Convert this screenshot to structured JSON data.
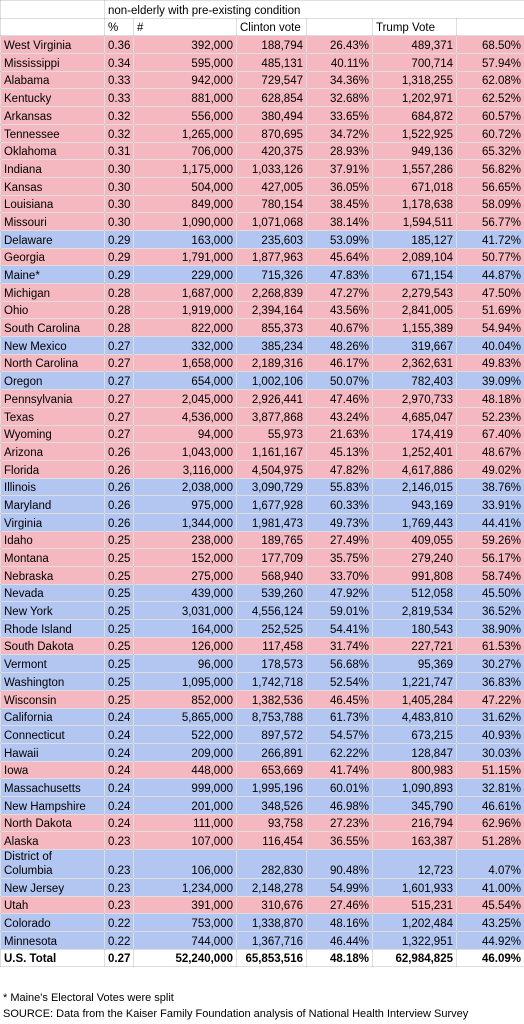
{
  "table": {
    "header_title": "non-elderly with pre-existing condition",
    "columns": [
      "%",
      "#",
      "Clinton vote",
      "Trump Vote"
    ],
    "rows": [
      [
        "West Virginia",
        "0.36",
        "392,000",
        "188,794",
        "26.43%",
        "489,371",
        "68.50%"
      ],
      [
        "Mississippi",
        "0.34",
        "595,000",
        "485,131",
        "40.11%",
        "700,714",
        "57.94%"
      ],
      [
        "Alabama",
        "0.33",
        "942,000",
        "729,547",
        "34.36%",
        "1,318,255",
        "62.08%"
      ],
      [
        "Kentucky",
        "0.33",
        "881,000",
        "628,854",
        "32.68%",
        "1,202,971",
        "62.52%"
      ],
      [
        "Arkansas",
        "0.32",
        "556,000",
        "380,494",
        "33.65%",
        "684,872",
        "60.57%"
      ],
      [
        "Tennessee",
        "0.32",
        "1,265,000",
        "870,695",
        "34.72%",
        "1,522,925",
        "60.72%"
      ],
      [
        "Oklahoma",
        "0.31",
        "706,000",
        "420,375",
        "28.93%",
        "949,136",
        "65.32%"
      ],
      [
        "Indiana",
        "0.30",
        "1,175,000",
        "1,033,126",
        "37.91%",
        "1,557,286",
        "56.82%"
      ],
      [
        "Kansas",
        "0.30",
        "504,000",
        "427,005",
        "36.05%",
        "671,018",
        "56.65%"
      ],
      [
        "Louisiana",
        "0.30",
        "849,000",
        "780,154",
        "38.45%",
        "1,178,638",
        "58.09%"
      ],
      [
        "Missouri",
        "0.30",
        "1,090,000",
        "1,071,068",
        "38.14%",
        "1,594,511",
        "56.77%"
      ],
      [
        "Delaware",
        "0.29",
        "163,000",
        "235,603",
        "53.09%",
        "185,127",
        "41.72%"
      ],
      [
        "Georgia",
        "0.29",
        "1,791,000",
        "1,877,963",
        "45.64%",
        "2,089,104",
        "50.77%"
      ],
      [
        "Maine*",
        "0.29",
        "229,000",
        "715,326",
        "47.83%",
        "671,154",
        "44.87%"
      ],
      [
        "Michigan",
        "0.28",
        "1,687,000",
        "2,268,839",
        "47.27%",
        "2,279,543",
        "47.50%"
      ],
      [
        "Ohio",
        "0.28",
        "1,919,000",
        "2,394,164",
        "43.56%",
        "2,841,005",
        "51.69%"
      ],
      [
        "South Carolina",
        "0.28",
        "822,000",
        "855,373",
        "40.67%",
        "1,155,389",
        "54.94%"
      ],
      [
        "New Mexico",
        "0.27",
        "332,000",
        "385,234",
        "48.26%",
        "319,667",
        "40.04%"
      ],
      [
        "North Carolina",
        "0.27",
        "1,658,000",
        "2,189,316",
        "46.17%",
        "2,362,631",
        "49.83%"
      ],
      [
        "Oregon",
        "0.27",
        "654,000",
        "1,002,106",
        "50.07%",
        "782,403",
        "39.09%"
      ],
      [
        "Pennsylvania",
        "0.27",
        "2,045,000",
        "2,926,441",
        "47.46%",
        "2,970,733",
        "48.18%"
      ],
      [
        "Texas",
        "0.27",
        "4,536,000",
        "3,877,868",
        "43.24%",
        "4,685,047",
        "52.23%"
      ],
      [
        "Wyoming",
        "0.27",
        "94,000",
        "55,973",
        "21.63%",
        "174,419",
        "67.40%"
      ],
      [
        "Arizona",
        "0.26",
        "1,043,000",
        "1,161,167",
        "45.13%",
        "1,252,401",
        "48.67%"
      ],
      [
        "Florida",
        "0.26",
        "3,116,000",
        "4,504,975",
        "47.82%",
        "4,617,886",
        "49.02%"
      ],
      [
        "Illinois",
        "0.26",
        "2,038,000",
        "3,090,729",
        "55.83%",
        "2,146,015",
        "38.76%"
      ],
      [
        "Maryland",
        "0.26",
        "975,000",
        "1,677,928",
        "60.33%",
        "943,169",
        "33.91%"
      ],
      [
        "Virginia",
        "0.26",
        "1,344,000",
        "1,981,473",
        "49.73%",
        "1,769,443",
        "44.41%"
      ],
      [
        "Idaho",
        "0.25",
        "238,000",
        "189,765",
        "27.49%",
        "409,055",
        "59.26%"
      ],
      [
        "Montana",
        "0.25",
        "152,000",
        "177,709",
        "35.75%",
        "279,240",
        "56.17%"
      ],
      [
        "Nebraska",
        "0.25",
        "275,000",
        "568,940",
        "33.70%",
        "991,808",
        "58.74%"
      ],
      [
        "Nevada",
        "0.25",
        "439,000",
        "539,260",
        "47.92%",
        "512,058",
        "45.50%"
      ],
      [
        "New York",
        "0.25",
        "3,031,000",
        "4,556,124",
        "59.01%",
        "2,819,534",
        "36.52%"
      ],
      [
        "Rhode Island",
        "0.25",
        "164,000",
        "252,525",
        "54.41%",
        "180,543",
        "38.90%"
      ],
      [
        "South Dakota",
        "0.25",
        "126,000",
        "117,458",
        "31.74%",
        "227,721",
        "61.53%"
      ],
      [
        "Vermont",
        "0.25",
        "96,000",
        "178,573",
        "56.68%",
        "95,369",
        "30.27%"
      ],
      [
        "Washington",
        "0.25",
        "1,095,000",
        "1,742,718",
        "52.54%",
        "1,221,747",
        "36.83%"
      ],
      [
        "Wisconsin",
        "0.25",
        "852,000",
        "1,382,536",
        "46.45%",
        "1,405,284",
        "47.22%"
      ],
      [
        "California",
        "0.24",
        "5,865,000",
        "8,753,788",
        "61.73%",
        "4,483,810",
        "31.62%"
      ],
      [
        "Connecticut",
        "0.24",
        "522,000",
        "897,572",
        "54.57%",
        "673,215",
        "40.93%"
      ],
      [
        "Hawaii",
        "0.24",
        "209,000",
        "266,891",
        "62.22%",
        "128,847",
        "30.03%"
      ],
      [
        "Iowa",
        "0.24",
        "448,000",
        "653,669",
        "41.74%",
        "800,983",
        "51.15%"
      ],
      [
        "Massachusetts",
        "0.24",
        "999,000",
        "1,995,196",
        "60.01%",
        "1,090,893",
        "32.81%"
      ],
      [
        "New Hampshire",
        "0.24",
        "201,000",
        "348,526",
        "46.98%",
        "345,790",
        "46.61%"
      ],
      [
        "North Dakota",
        "0.24",
        "111,000",
        "93,758",
        "27.23%",
        "216,794",
        "62.96%"
      ],
      [
        "Alaska",
        "0.23",
        "107,000",
        "116,454",
        "36.55%",
        "163,387",
        "51.28%"
      ],
      [
        "District of Columbia",
        "0.23",
        "106,000",
        "282,830",
        "90.48%",
        "12,723",
        "4.07%"
      ],
      [
        "New Jersey",
        "0.23",
        "1,234,000",
        "2,148,278",
        "54.99%",
        "1,601,933",
        "41.00%"
      ],
      [
        "Utah",
        "0.23",
        "391,000",
        "310,676",
        "27.46%",
        "515,231",
        "45.54%"
      ],
      [
        "Colorado",
        "0.22",
        "753,000",
        "1,338,870",
        "48.16%",
        "1,202,484",
        "43.25%"
      ],
      [
        "Minnesota",
        "0.22",
        "744,000",
        "1,367,716",
        "46.44%",
        "1,322,951",
        "44.92%"
      ]
    ],
    "row_fills": [
      "#f5b8c0",
      "#f5b8c0",
      "#f5b8c0",
      "#f5b8c0",
      "#f5b8c0",
      "#f5b8c0",
      "#f5b8c0",
      "#f5b8c0",
      "#f5b8c0",
      "#f5b8c0",
      "#f5b8c0",
      "#b3c6f2",
      "#f5b8c0",
      "#b3c6f2",
      "#f5b8c0",
      "#f5b8c0",
      "#f5b8c0",
      "#b3c6f2",
      "#f5b8c0",
      "#b3c6f2",
      "#f5b8c0",
      "#f5b8c0",
      "#f5b8c0",
      "#f5b8c0",
      "#f5b8c0",
      "#b3c6f2",
      "#b3c6f2",
      "#b3c6f2",
      "#f5b8c0",
      "#f5b8c0",
      "#f5b8c0",
      "#b3c6f2",
      "#b3c6f2",
      "#b3c6f2",
      "#f5b8c0",
      "#b3c6f2",
      "#b3c6f2",
      "#f5b8c0",
      "#b3c6f2",
      "#b3c6f2",
      "#b3c6f2",
      "#f5b8c0",
      "#b3c6f2",
      "#b3c6f2",
      "#f5b8c0",
      "#f5b8c0",
      "#b3c6f2",
      "#b3c6f2",
      "#f5b8c0",
      "#b3c6f2",
      "#b3c6f2"
    ],
    "total": [
      "U.S. Total",
      "0.27",
      "52,240,000",
      "65,853,516",
      "48.18%",
      "62,984,825",
      "46.09%"
    ]
  },
  "footnotes": [
    "* Maine's Electoral Votes were split",
    "SOURCE: Data from the Kaiser Family Foundation analysis of National Health Interview Survey"
  ]
}
